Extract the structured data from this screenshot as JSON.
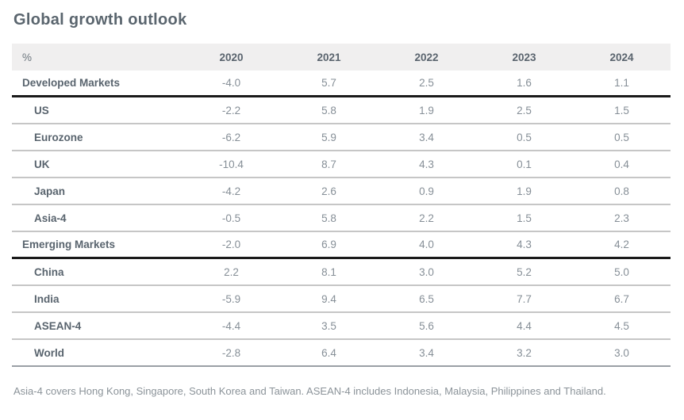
{
  "title": "Global growth outlook",
  "table": {
    "unit_header": "%",
    "year_headers": [
      "2020",
      "2021",
      "2022",
      "2023",
      "2024"
    ],
    "rows": [
      {
        "label": "Developed Markets",
        "values": [
          "-4.0",
          "5.7",
          "2.5",
          "1.6",
          "1.1"
        ]
      },
      {
        "label": "US",
        "values": [
          "-2.2",
          "5.8",
          "1.9",
          "2.5",
          "1.5"
        ]
      },
      {
        "label": "Eurozone",
        "values": [
          "-6.2",
          "5.9",
          "3.4",
          "0.5",
          "0.5"
        ]
      },
      {
        "label": "UK",
        "values": [
          "-10.4",
          "8.7",
          "4.3",
          "0.1",
          "0.4"
        ]
      },
      {
        "label": "Japan",
        "values": [
          "-4.2",
          "2.6",
          "0.9",
          "1.9",
          "0.8"
        ]
      },
      {
        "label": "Asia-4",
        "values": [
          "-0.5",
          "5.8",
          "2.2",
          "1.5",
          "2.3"
        ]
      },
      {
        "label": "Emerging Markets",
        "values": [
          "-2.0",
          "6.9",
          "4.0",
          "4.3",
          "4.2"
        ]
      },
      {
        "label": "China",
        "values": [
          "2.2",
          "8.1",
          "3.0",
          "5.2",
          "5.0"
        ]
      },
      {
        "label": "India",
        "values": [
          "-5.9",
          "9.4",
          "6.5",
          "7.7",
          "6.7"
        ]
      },
      {
        "label": "ASEAN-4",
        "values": [
          "-4.4",
          "3.5",
          "5.6",
          "4.4",
          "4.5"
        ]
      },
      {
        "label": "World",
        "values": [
          "-2.8",
          "6.4",
          "3.4",
          "3.2",
          "3.0"
        ]
      }
    ]
  },
  "footnote": "Asia-4 covers Hong Kong, Singapore, South Korea and Taiwan. ASEAN-4 includes Indonesia, Malaysia, Philippines and Thailand.",
  "colors": {
    "title_text": "#5a656e",
    "label_text": "#59646e",
    "value_text": "#868f97",
    "header_background": "#f0efef",
    "thin_border": "#c6c6c6",
    "thick_border": "#1a1a1a",
    "end_border": "#9aa0a5"
  },
  "chart_data": {
    "type": "table",
    "title": "Global growth outlook",
    "unit": "% (annual GDP growth)",
    "categories": [
      "2020",
      "2021",
      "2022",
      "2023",
      "2024"
    ],
    "series": [
      {
        "name": "Developed Markets",
        "values": [
          -4.0,
          5.7,
          2.5,
          1.6,
          1.1
        ]
      },
      {
        "name": "US",
        "values": [
          -2.2,
          5.8,
          1.9,
          2.5,
          1.5
        ]
      },
      {
        "name": "Eurozone",
        "values": [
          -6.2,
          5.9,
          3.4,
          0.5,
          0.5
        ]
      },
      {
        "name": "UK",
        "values": [
          -10.4,
          8.7,
          4.3,
          0.1,
          0.4
        ]
      },
      {
        "name": "Japan",
        "values": [
          -4.2,
          2.6,
          0.9,
          1.9,
          0.8
        ]
      },
      {
        "name": "Asia-4",
        "values": [
          -0.5,
          5.8,
          2.2,
          1.5,
          2.3
        ]
      },
      {
        "name": "Emerging Markets",
        "values": [
          -2.0,
          6.9,
          4.0,
          4.3,
          4.2
        ]
      },
      {
        "name": "China",
        "values": [
          2.2,
          8.1,
          3.0,
          5.2,
          5.0
        ]
      },
      {
        "name": "India",
        "values": [
          -5.9,
          9.4,
          6.5,
          7.7,
          6.7
        ]
      },
      {
        "name": "ASEAN-4",
        "values": [
          -4.4,
          3.5,
          5.6,
          4.4,
          4.5
        ]
      },
      {
        "name": "World",
        "values": [
          -2.8,
          6.4,
          3.4,
          3.2,
          3.0
        ]
      }
    ],
    "footnote": "Asia-4 covers Hong Kong, Singapore, South Korea and Taiwan. ASEAN-4 includes Indonesia, Malaysia, Philippines and Thailand."
  }
}
